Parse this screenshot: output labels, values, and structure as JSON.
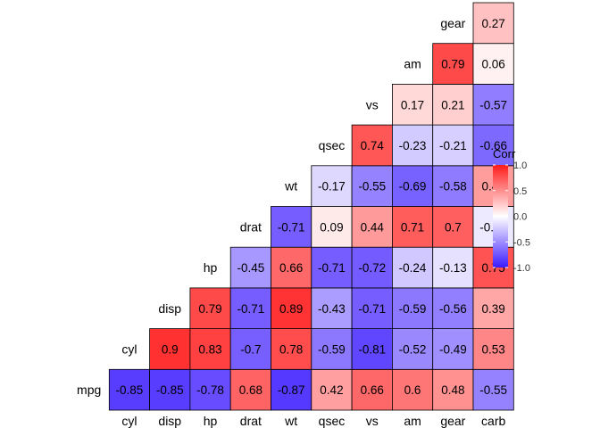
{
  "chart_data": {
    "type": "heatmap",
    "variables": [
      "mpg",
      "cyl",
      "disp",
      "hp",
      "drat",
      "wt",
      "qsec",
      "vs",
      "am",
      "gear",
      "carb"
    ],
    "x_ticks": [
      "cyl",
      "disp",
      "hp",
      "drat",
      "wt",
      "qsec",
      "vs",
      "am",
      "gear",
      "carb"
    ],
    "rows": [
      {
        "label": "mpg",
        "values": [
          -0.85,
          -0.85,
          -0.78,
          0.68,
          -0.87,
          0.42,
          0.66,
          0.6,
          0.48,
          -0.55
        ]
      },
      {
        "label": "cyl",
        "values": [
          0.9,
          0.83,
          -0.7,
          0.78,
          -0.59,
          -0.81,
          -0.52,
          -0.49,
          0.53
        ]
      },
      {
        "label": "disp",
        "values": [
          0.79,
          -0.71,
          0.89,
          -0.43,
          -0.71,
          -0.59,
          -0.56,
          0.39
        ]
      },
      {
        "label": "hp",
        "values": [
          -0.45,
          0.66,
          -0.71,
          -0.72,
          -0.24,
          -0.13,
          0.75
        ]
      },
      {
        "label": "drat",
        "values": [
          -0.71,
          0.09,
          0.44,
          0.71,
          0.7,
          -0.09
        ]
      },
      {
        "label": "wt",
        "values": [
          -0.17,
          -0.55,
          -0.69,
          -0.58,
          0.43
        ]
      },
      {
        "label": "qsec",
        "values": [
          0.74,
          -0.23,
          -0.21,
          -0.66
        ]
      },
      {
        "label": "vs",
        "values": [
          0.17,
          0.21,
          -0.57
        ]
      },
      {
        "label": "am",
        "values": [
          0.79,
          0.06
        ]
      },
      {
        "label": "gear",
        "values": [
          0.27
        ]
      }
    ],
    "legend": {
      "title": "Corr",
      "ticks": [
        1.0,
        0.5,
        0.0,
        -0.5,
        -1.0
      ],
      "tick_labels": [
        "1.0",
        "0.5",
        "0.0",
        "-0.5",
        "-1.0"
      ],
      "placement": "right"
    },
    "colors": {
      "low": "#3c1bff",
      "mid": "#ffffff",
      "high": "#ff1a1a",
      "border": "#000000"
    },
    "value_range": [
      -1,
      1
    ],
    "grid": false
  }
}
